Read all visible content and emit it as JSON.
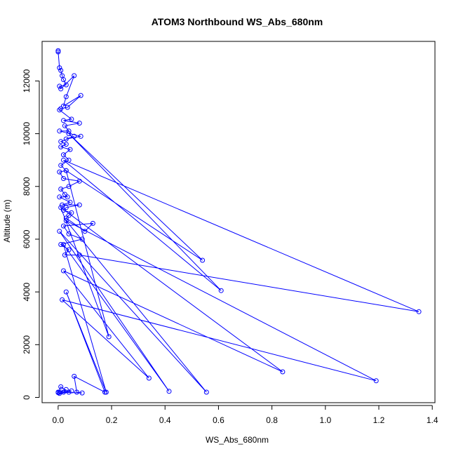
{
  "chart_data": {
    "type": "line",
    "title": "ATOM3 Northbound WS_Abs_680nm",
    "xlabel": "WS_Abs_680nm",
    "ylabel": "Altitude (m)",
    "xlim": [
      -0.06,
      1.41
    ],
    "ylim": [
      -200,
      13500
    ],
    "x_ticks": [
      0.0,
      0.2,
      0.4,
      0.6,
      0.8,
      1.0,
      1.2,
      1.4
    ],
    "x_tick_labels": [
      "0.0",
      "0.2",
      "0.4",
      "0.6",
      "0.8",
      "1.0",
      "1.2",
      "1.4"
    ],
    "y_ticks": [
      0,
      2000,
      4000,
      6000,
      8000,
      10000,
      12000
    ],
    "y_tick_labels": [
      "0",
      "2000",
      "4000",
      "6000",
      "8000",
      "10000",
      "12000"
    ],
    "grid": false,
    "color": "#0000ff",
    "marker": "open-circle",
    "series": [
      {
        "x": [
          0.0,
          0.0,
          0.005,
          0.01,
          0.015,
          0.02,
          0.03,
          0.005,
          0.01,
          0.06,
          0.03,
          0.02,
          0.085,
          0.035,
          0.01,
          0.005,
          0.05,
          0.02,
          0.08,
          0.025,
          0.04,
          0.005,
          0.085,
          0.03,
          0.06,
          0.01,
          0.03,
          0.01,
          0.045,
          0.02,
          0.04,
          0.01,
          0.03,
          0.005,
          0.02,
          0.08,
          0.04,
          0.01,
          0.025,
          0.035,
          0.005,
          0.045,
          0.015,
          0.08,
          0.03,
          0.02,
          0.05,
          0.04,
          0.03,
          0.1,
          0.13,
          0.02,
          0.04,
          0.09,
          0.01,
          0.04,
          0.025,
          0.08,
          1.35,
          0.02,
          0.61,
          0.04,
          0.54,
          0.03,
          0.19,
          0.01,
          0.84,
          0.02,
          0.34,
          0.015,
          1.19,
          0.03,
          0.555,
          0.005,
          0.415,
          0.02,
          0.18,
          0.03,
          0.175,
          0.06,
          0.07,
          0.09,
          0.005,
          0.05,
          0.02,
          0.03,
          0.0,
          0.01,
          0.04,
          0.005,
          0.0
        ],
        "y": [
          13150,
          13100,
          12500,
          12400,
          12200,
          12050,
          11850,
          11800,
          11700,
          12200,
          11400,
          11050,
          11450,
          11000,
          10950,
          10900,
          10550,
          10500,
          10400,
          10300,
          10100,
          10100,
          9900,
          9800,
          9900,
          9700,
          9600,
          9500,
          9400,
          9200,
          9000,
          8800,
          8600,
          8550,
          8300,
          8200,
          8000,
          7900,
          7700,
          7600,
          7600,
          7400,
          7300,
          7300,
          7200,
          7100,
          7000,
          6900,
          6800,
          6300,
          6600,
          6500,
          6200,
          6000,
          5800,
          5600,
          5400,
          5400,
          3250,
          9000,
          4050,
          10000,
          5200,
          8600,
          2300,
          7200,
          970,
          4800,
          730,
          3700,
          630,
          6700,
          200,
          6300,
          230,
          5800,
          200,
          4000,
          200,
          800,
          200,
          170,
          200,
          250,
          200,
          300,
          180,
          400,
          200,
          150,
          200
        ]
      }
    ]
  }
}
